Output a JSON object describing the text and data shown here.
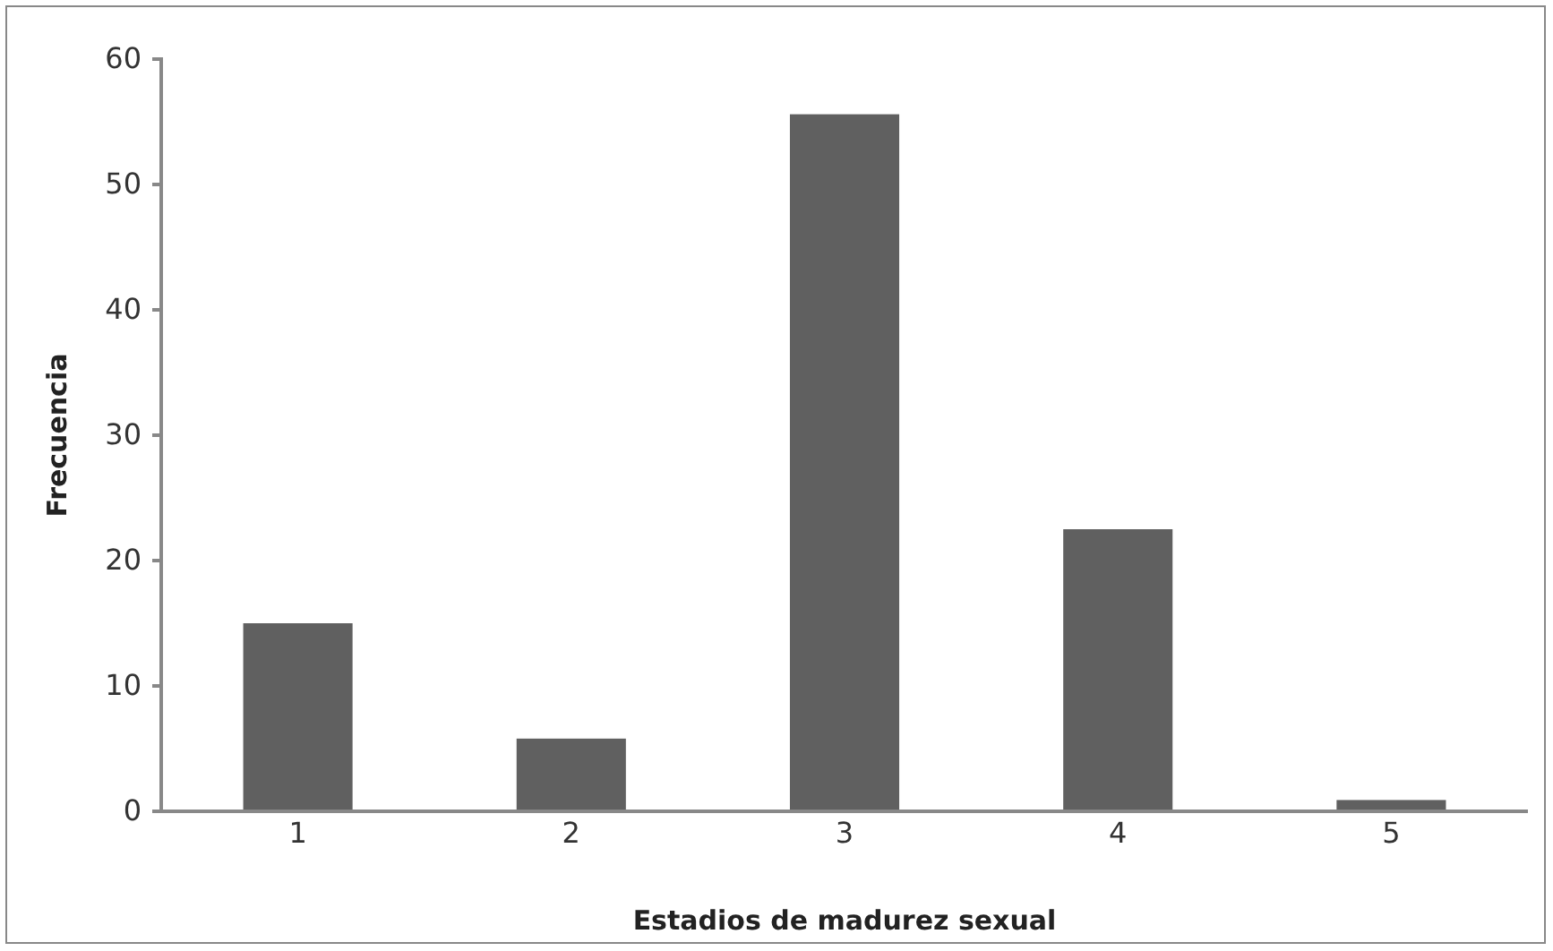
{
  "chart_data": {
    "type": "bar",
    "xlabel": "Estadios de madurez sexual",
    "ylabel": "Frecuencia",
    "categories": [
      "1",
      "2",
      "3",
      "4",
      "5"
    ],
    "values": [
      15,
      5.8,
      55.6,
      22.5,
      0.9
    ],
    "color": "#606060",
    "ylim": [
      0,
      60
    ],
    "yticks": [
      0,
      10,
      20,
      30,
      40,
      50,
      60
    ],
    "grid": false
  }
}
